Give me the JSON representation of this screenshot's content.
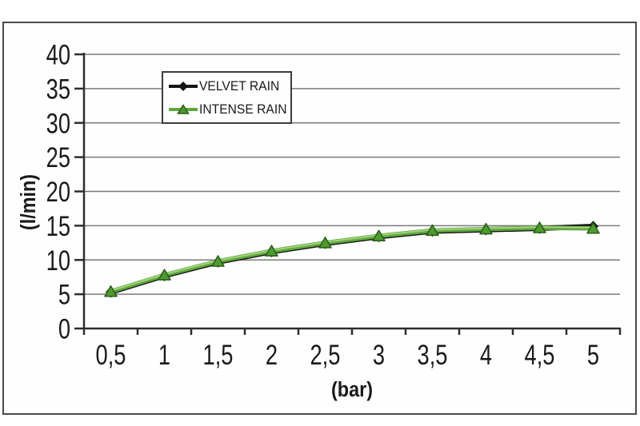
{
  "chart_data": {
    "type": "line",
    "title": "",
    "xlabel": "(bar)",
    "ylabel": "(l/min)",
    "x_tick_labels": [
      "0,5",
      "1",
      "1,5",
      "2",
      "2,5",
      "3",
      "3,5",
      "4",
      "4,5",
      "5"
    ],
    "x_values": [
      0.5,
      1,
      1.5,
      2,
      2.5,
      3,
      3.5,
      4,
      4.5,
      5
    ],
    "ylim": [
      0,
      40
    ],
    "ytick_step": 5,
    "ytick_labels": [
      "0",
      "5",
      "10",
      "15",
      "20",
      "25",
      "30",
      "35",
      "40"
    ],
    "grid": "horizontal-only",
    "legend_position": "inside-top-center",
    "series": [
      {
        "name": "VELVET RAIN",
        "marker": "diamond",
        "line_color": "#141414",
        "marker_color": "#141414",
        "values": [
          5.3,
          7.7,
          9.7,
          11.2,
          12.4,
          13.4,
          14.2,
          14.4,
          14.6,
          14.9
        ]
      },
      {
        "name": "INTENSE RAIN",
        "marker": "triangle",
        "line_color": "#5fa73e",
        "highlight_color": "#a2d47c",
        "marker_color": "#4f9a30",
        "marker_edge_color": "#2a5c17",
        "values": [
          5.4,
          7.8,
          9.8,
          11.3,
          12.5,
          13.5,
          14.3,
          14.5,
          14.7,
          14.6
        ]
      }
    ],
    "colors": {
      "grid": "#7a7a7a",
      "axis": "#2e2e2e",
      "text": "#1a1a1a",
      "frame_border": "#4a4a4a",
      "background": "#ffffff"
    }
  }
}
